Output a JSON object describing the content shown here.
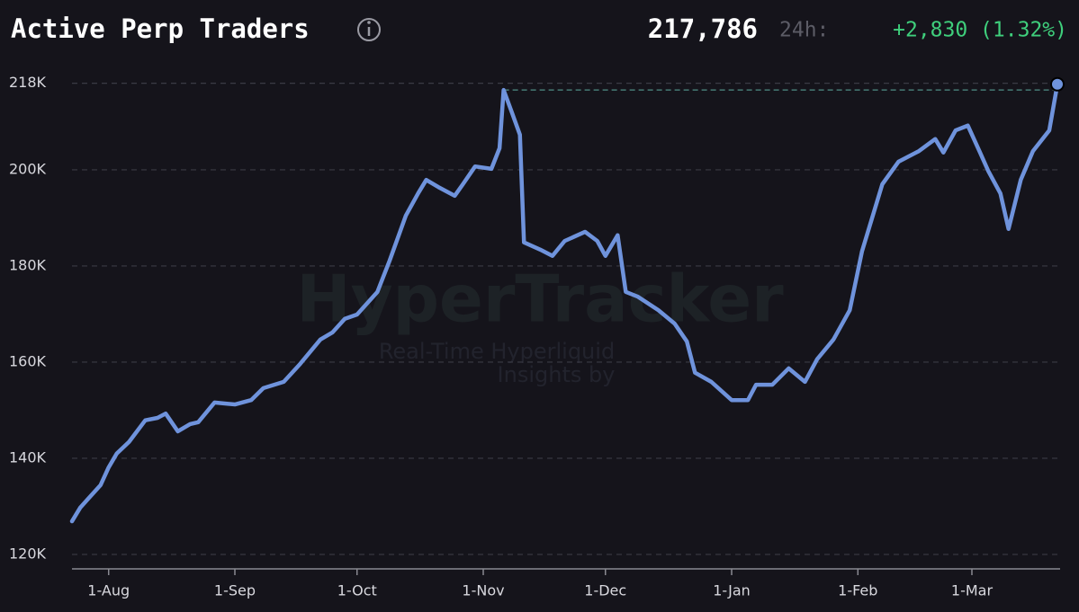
{
  "chart_data": {
    "type": "line",
    "title": "Active Perp Traders",
    "current_value": "217,786",
    "change_label": "24h:",
    "change": "+2,830 (1.32%)",
    "watermark": {
      "brand": "HyperTracker",
      "tagline_1": "Real-Time Hyperliquid",
      "tagline_2": "Insights by"
    },
    "x": [
      -9,
      -7,
      -5,
      -2,
      0,
      2,
      5,
      9,
      12,
      14,
      17,
      20,
      22,
      26,
      31,
      35,
      38,
      43,
      47,
      52,
      55,
      58,
      61,
      66,
      69,
      73,
      76,
      78,
      81,
      85,
      87,
      90,
      94,
      96,
      97,
      99,
      101,
      102,
      106,
      109,
      112,
      117,
      120,
      122,
      125,
      127,
      130,
      135,
      139,
      142,
      144,
      148,
      153,
      157,
      159,
      163,
      167,
      171,
      174,
      178,
      182,
      185,
      190,
      194,
      199,
      203,
      205,
      208,
      211,
      214,
      216,
      219,
      221,
      224,
      227,
      231,
      233
    ],
    "series": [
      {
        "name": "Active Perp Traders",
        "color": "#6f93dc",
        "values": [
          126900,
          129700,
          131600,
          134400,
          138100,
          141000,
          143400,
          147900,
          148400,
          149300,
          145600,
          147100,
          147500,
          151600,
          151200,
          152100,
          154600,
          155900,
          159600,
          164700,
          166200,
          169000,
          169900,
          174600,
          181100,
          190500,
          195100,
          197900,
          196400,
          194600,
          197000,
          200700,
          200200,
          204500,
          216600,
          212000,
          207300,
          184900,
          183400,
          182100,
          185200,
          187100,
          185200,
          182100,
          186400,
          174600,
          173600,
          170800,
          168000,
          164300,
          157800,
          155900,
          152100,
          152100,
          155300,
          155300,
          158700,
          155900,
          160600,
          164700,
          170800,
          183000,
          197000,
          201700,
          203900,
          206400,
          203600,
          208200,
          209200,
          203600,
          199800,
          195100,
          187700,
          197900,
          203900,
          208200,
          217786
        ]
      }
    ],
    "xlim": [
      -9,
      233
    ],
    "xticks": [
      {
        "value": 0,
        "label": "1-Aug"
      },
      {
        "value": 31,
        "label": "1-Sep"
      },
      {
        "value": 61,
        "label": "1-Oct"
      },
      {
        "value": 92,
        "label": "1-Nov"
      },
      {
        "value": 122,
        "label": "1-Dec"
      },
      {
        "value": 153,
        "label": "1-Jan"
      },
      {
        "value": 184,
        "label": "1-Feb"
      },
      {
        "value": 212,
        "label": "1-Mar"
      }
    ],
    "ylim": [
      117000,
      221000
    ],
    "yticks": [
      {
        "value": 120000,
        "label": "120K"
      },
      {
        "value": 140000,
        "label": "140K"
      },
      {
        "value": 160000,
        "label": "160K"
      },
      {
        "value": 180000,
        "label": "180K"
      },
      {
        "value": 200000,
        "label": "200K"
      },
      {
        "value": 218000,
        "label": "218K"
      }
    ],
    "grid": true
  }
}
